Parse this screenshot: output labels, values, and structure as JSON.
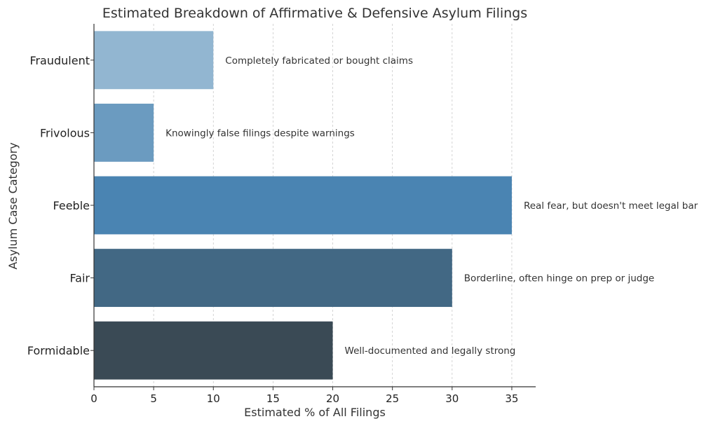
{
  "chart_data": {
    "type": "bar",
    "orientation": "horizontal",
    "title": "Estimated Breakdown of Affirmative & Defensive Asylum Filings",
    "xlabel": "Estimated % of All Filings",
    "ylabel": "Asylum Case Category",
    "xlim": [
      0,
      37
    ],
    "xticks": [
      0,
      5,
      10,
      15,
      20,
      25,
      30,
      35
    ],
    "grid": "vertical-dashed",
    "categories": [
      "Fraudulent",
      "Frivolous",
      "Feeble",
      "Fair",
      "Formidable"
    ],
    "values": [
      10,
      5,
      35,
      30,
      20
    ],
    "annotations": [
      "Completely fabricated or bought claims",
      "Knowingly false filings despite warnings",
      "Real fear, but doesn't meet legal bar",
      "Borderline, often hinge on prep or judge",
      "Well-documented and legally strong"
    ],
    "colors": [
      "#92b6d1",
      "#6b9bc0",
      "#4a84b2",
      "#426884",
      "#3a4a55"
    ]
  }
}
